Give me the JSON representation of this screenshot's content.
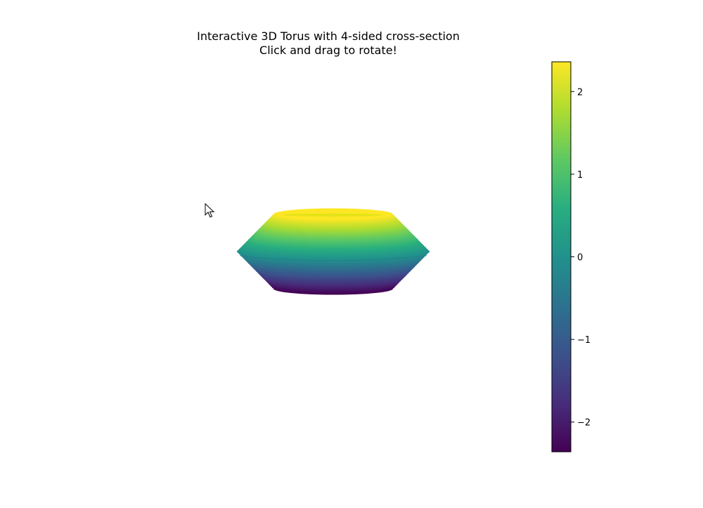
{
  "figure": {
    "title_line1": "Interactive 3D Torus with 4-sided cross-section",
    "title_line2": "Click and drag to rotate!"
  },
  "colorbar": {
    "colormap": "viridis",
    "vmin": -2.36,
    "vmax": 2.36,
    "ticks": [
      {
        "value": 2,
        "label": "2"
      },
      {
        "value": 1,
        "label": "1"
      },
      {
        "value": 0,
        "label": "0"
      },
      {
        "value": -1,
        "label": "−1"
      },
      {
        "value": -2,
        "label": "−2"
      }
    ]
  },
  "chart_data": {
    "type": "surface3d",
    "surface": "torus",
    "cross_section_sides": 4,
    "color_by": "z",
    "z_range": [
      -2.36,
      2.36
    ],
    "view": "side",
    "axes_visible": false,
    "colors": {
      "viridis_stops": [
        "#440154",
        "#472d7b",
        "#3b528b",
        "#2c728e",
        "#21918c",
        "#28ae80",
        "#5ec962",
        "#addc30",
        "#fde725"
      ]
    }
  },
  "cursor": {
    "icon": "mouse-pointer-icon"
  }
}
